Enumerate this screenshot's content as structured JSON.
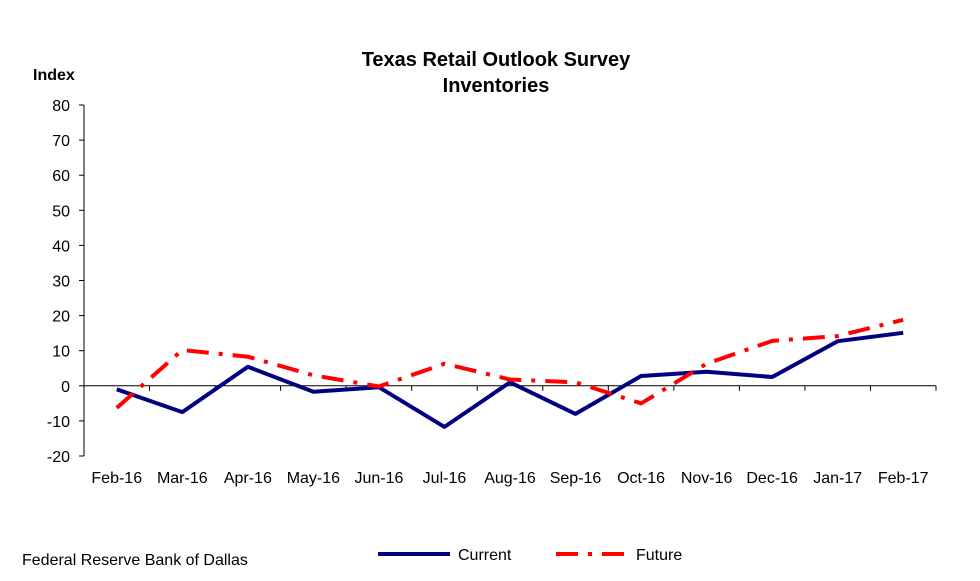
{
  "chart_data": {
    "type": "line",
    "title": "Texas Retail Outlook Survey",
    "subtitle": "Inventories",
    "ylabel": "Index",
    "xlabel": "",
    "ylim": [
      -20,
      80
    ],
    "yticks": [
      -20,
      -10,
      0,
      10,
      20,
      30,
      40,
      50,
      60,
      70,
      80
    ],
    "categories": [
      "Feb-16",
      "Mar-16",
      "Apr-16",
      "May-16",
      "Jun-16",
      "Jul-16",
      "Aug-16",
      "Sep-16",
      "Oct-16",
      "Nov-16",
      "Dec-16",
      "Jan-17",
      "Feb-17"
    ],
    "series": [
      {
        "name": "Current",
        "color": "#000080",
        "style": "solid",
        "values": [
          -1.0,
          -7.5,
          5.4,
          -1.7,
          -0.4,
          -11.7,
          1.0,
          -8.0,
          2.8,
          4.0,
          2.5,
          12.7,
          15.1
        ]
      },
      {
        "name": "Future",
        "color": "#ff0000",
        "style": "dash-dot",
        "values": [
          -6.3,
          10.2,
          8.3,
          3.0,
          -0.2,
          6.3,
          1.8,
          1.0,
          -5.0,
          6.3,
          12.8,
          14.2,
          18.8
        ]
      }
    ],
    "grid": false,
    "legend_position": "bottom-center"
  },
  "footer": {
    "source": "Federal Reserve Bank of Dallas"
  }
}
